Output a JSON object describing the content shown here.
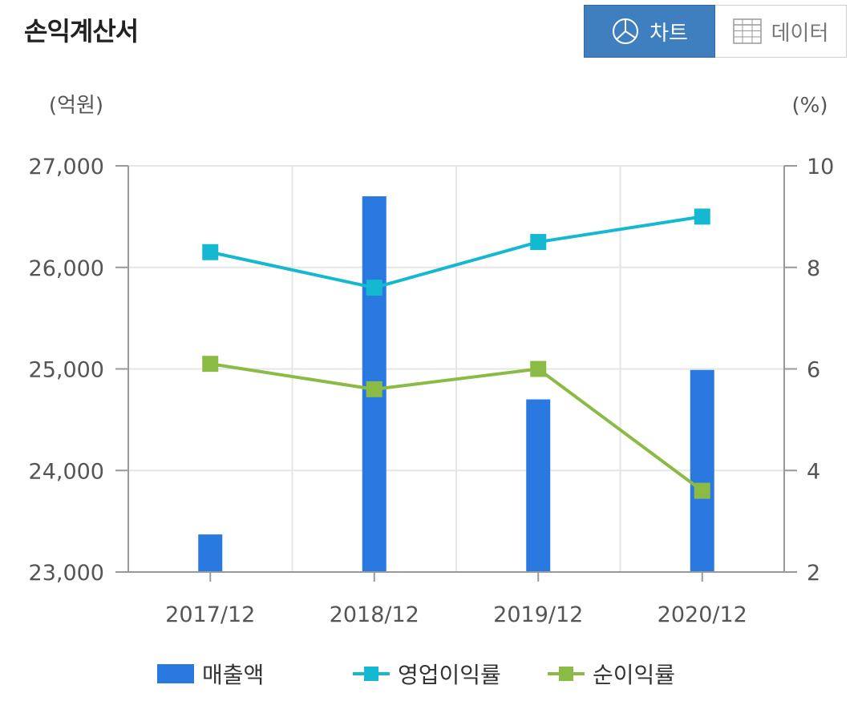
{
  "header": {
    "title": "손익계산서",
    "chart_button_label": "차트",
    "data_button_label": "데이터"
  },
  "colors": {
    "bar": "#2979e0",
    "operating_margin": "#14b8d0",
    "net_margin": "#8bbb45",
    "active_button": "#3f7fbf"
  },
  "icons": {
    "chart_button": "pie-chart-icon",
    "data_button": "table-grid-icon"
  },
  "chart_data": {
    "type": "bar",
    "title": "",
    "categories": [
      "2017/12",
      "2018/12",
      "2019/12",
      "2020/12"
    ],
    "y_left": {
      "unit_label": "(억원)",
      "range": [
        23000,
        27000
      ],
      "ticks": [
        "23,000",
        "24,000",
        "25,000",
        "26,000",
        "27,000"
      ]
    },
    "y_right": {
      "unit_label": "(%)",
      "range": [
        2,
        10
      ],
      "ticks": [
        "2",
        "4",
        "6",
        "8",
        "10"
      ]
    },
    "grid": true,
    "legend_position": "bottom",
    "series": [
      {
        "name": "매출액",
        "type": "bar",
        "axis": "left",
        "values": [
          23370,
          26700,
          24700,
          24990
        ]
      },
      {
        "name": "영업이익률",
        "type": "line",
        "axis": "right",
        "values": [
          8.3,
          7.6,
          8.5,
          9.0
        ]
      },
      {
        "name": "순이익률",
        "type": "line",
        "axis": "right",
        "values": [
          6.1,
          5.6,
          6.0,
          3.6
        ]
      }
    ]
  }
}
